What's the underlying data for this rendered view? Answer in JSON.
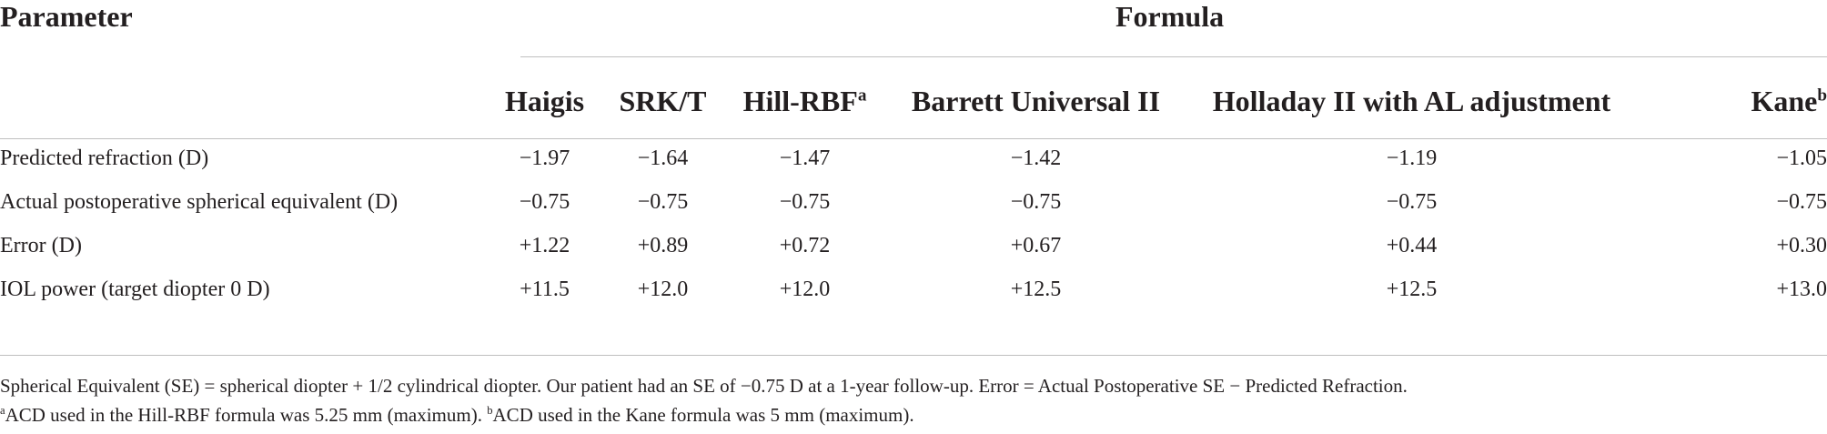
{
  "header": {
    "parameter_label": "Parameter",
    "formula_label": "Formula"
  },
  "columns": [
    {
      "label": "Haigis",
      "sup": ""
    },
    {
      "label": "SRK/T",
      "sup": ""
    },
    {
      "label": "Hill-RBF",
      "sup": "a"
    },
    {
      "label": "Barrett Universal II",
      "sup": ""
    },
    {
      "label": "Holladay II with AL adjustment",
      "sup": ""
    },
    {
      "label": "Kane",
      "sup": "b"
    }
  ],
  "rows": [
    {
      "label": "Predicted refraction (D)",
      "values": [
        "−1.97",
        "−1.64",
        "−1.47",
        "−1.42",
        "−1.19",
        "−1.05"
      ]
    },
    {
      "label": "Actual postoperative spherical equivalent (D)",
      "values": [
        "−0.75",
        "−0.75",
        "−0.75",
        "−0.75",
        "−0.75",
        "−0.75"
      ]
    },
    {
      "label": "Error (D)",
      "values": [
        "+1.22",
        "+0.89",
        "+0.72",
        "+0.67",
        "+0.44",
        "+0.30"
      ]
    },
    {
      "label": "IOL power (target diopter 0 D)",
      "values": [
        "+11.5",
        "+12.0",
        "+12.0",
        "+12.5",
        "+12.5",
        "+13.0"
      ]
    }
  ],
  "footnotes": {
    "main": "Spherical Equivalent (SE) = spherical diopter + 1/2 cylindrical diopter. Our patient had an SE of −0.75 D at a 1-year follow-up. Error = Actual Postoperative SE − Predicted Refraction.",
    "a_marker": "a",
    "a_text": "ACD used in the Hill-RBF formula was 5.25 mm (maximum).",
    "b_marker": "b",
    "b_text": "ACD used in the Kane formula was 5 mm (maximum)."
  }
}
